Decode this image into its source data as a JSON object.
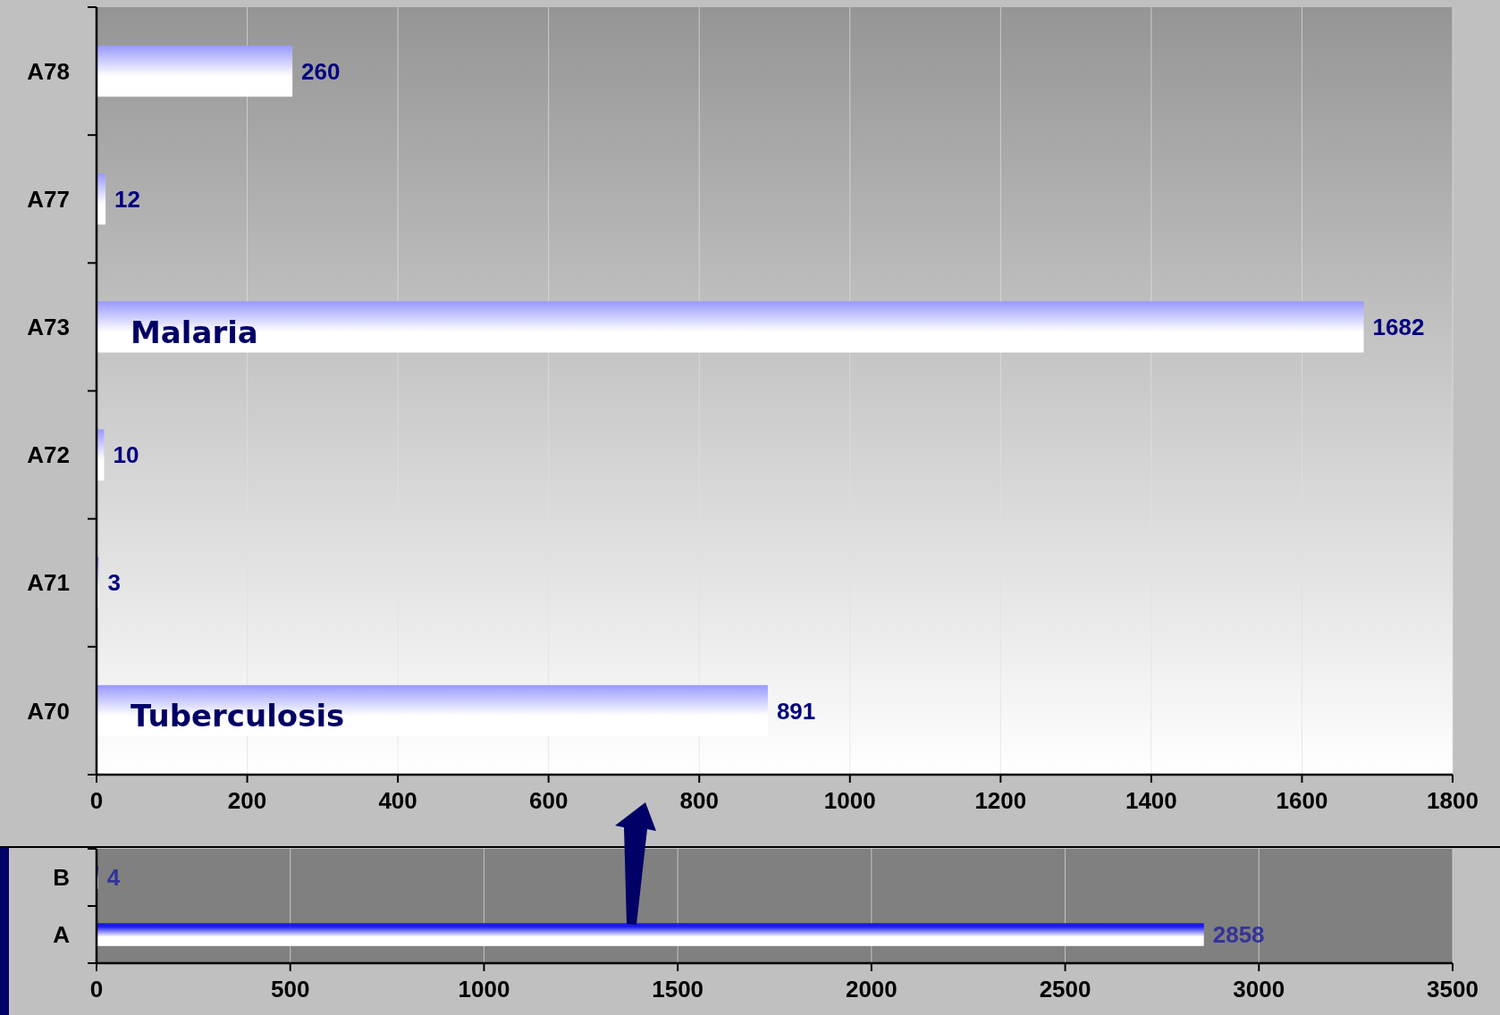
{
  "chart_data": [
    {
      "type": "bar",
      "orientation": "horizontal",
      "categories": [
        "A78",
        "A77",
        "A73",
        "A72",
        "A71",
        "A70"
      ],
      "values": [
        260,
        12,
        1682,
        10,
        3,
        891
      ],
      "color": "#9999ff",
      "xlim": [
        0,
        1800
      ],
      "xticks": [
        0,
        200,
        400,
        600,
        800,
        1000,
        1200,
        1400,
        1600,
        1800
      ],
      "grid": "x",
      "data_labels": true,
      "annotations": [
        "Malaria",
        "Tuberculosis"
      ]
    },
    {
      "type": "bar",
      "orientation": "horizontal",
      "categories": [
        "B",
        "A"
      ],
      "values": [
        4,
        2858
      ],
      "color": "#1a1aee",
      "xlim": [
        0,
        3500
      ],
      "xticks": [
        0,
        500,
        1000,
        1500,
        2000,
        2500,
        3000,
        3500
      ],
      "grid": "x",
      "data_labels": true
    }
  ]
}
